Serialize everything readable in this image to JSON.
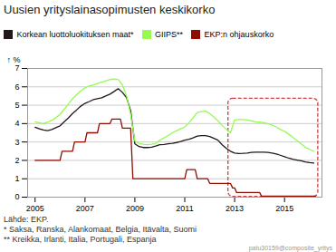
{
  "chart_data": {
    "type": "line",
    "title": "Uusien yrityslainasopimusten keskikorko",
    "y_label": "%",
    "xlim": [
      2004.7,
      2016.5
    ],
    "xticks": [
      2005,
      2007,
      2009,
      2011,
      2013,
      2015
    ],
    "ylim": [
      0,
      7
    ],
    "yticks": [
      0,
      1,
      2,
      3,
      4,
      5,
      6,
      7
    ],
    "grid": true,
    "legend": "top",
    "series": [
      {
        "name": "Korkean luottoluokituksen maat*",
        "x": [
          2005.0,
          2005.17,
          2005.33,
          2005.5,
          2005.67,
          2005.83,
          2006.0,
          2006.17,
          2006.33,
          2006.5,
          2006.67,
          2006.83,
          2007.0,
          2007.17,
          2007.33,
          2007.5,
          2007.67,
          2007.83,
          2008.0,
          2008.17,
          2008.33,
          2008.5,
          2008.67,
          2008.83,
          2009.0,
          2009.17,
          2009.33,
          2009.5,
          2009.67,
          2009.83,
          2010.0,
          2010.17,
          2010.33,
          2010.5,
          2010.67,
          2010.83,
          2011.0,
          2011.17,
          2011.33,
          2011.5,
          2011.67,
          2011.83,
          2012.0,
          2012.17,
          2012.33,
          2012.5,
          2012.67,
          2012.83,
          2013.0,
          2013.17,
          2013.33,
          2013.5,
          2013.67,
          2013.83,
          2014.0,
          2014.17,
          2014.33,
          2014.5,
          2014.67,
          2014.83,
          2015.0,
          2015.17,
          2015.33,
          2015.5,
          2015.67,
          2015.83,
          2016.0,
          2016.17
        ],
        "values": [
          3.8,
          3.72,
          3.65,
          3.62,
          3.68,
          3.78,
          3.88,
          4.1,
          4.3,
          4.55,
          4.75,
          4.95,
          5.1,
          5.2,
          5.3,
          5.35,
          5.4,
          5.5,
          5.6,
          5.75,
          5.9,
          5.7,
          5.4,
          4.7,
          2.9,
          2.75,
          2.7,
          2.7,
          2.72,
          2.78,
          2.85,
          2.87,
          2.9,
          2.93,
          2.97,
          3.02,
          3.1,
          3.15,
          3.22,
          3.32,
          3.35,
          3.35,
          3.3,
          3.2,
          3.1,
          2.85,
          2.65,
          2.5,
          2.4,
          2.37,
          2.38,
          2.4,
          2.43,
          2.45,
          2.45,
          2.45,
          2.43,
          2.4,
          2.35,
          2.28,
          2.2,
          2.12,
          2.06,
          2.02,
          1.98,
          1.92,
          1.88,
          1.85
        ]
      },
      {
        "name": "GIIPS**",
        "x": [
          2005.0,
          2005.17,
          2005.33,
          2005.5,
          2005.67,
          2005.83,
          2006.0,
          2006.17,
          2006.33,
          2006.5,
          2006.67,
          2006.83,
          2007.0,
          2007.17,
          2007.33,
          2007.5,
          2007.67,
          2007.83,
          2008.0,
          2008.17,
          2008.33,
          2008.5,
          2008.67,
          2008.83,
          2009.0,
          2009.17,
          2009.33,
          2009.5,
          2009.67,
          2009.83,
          2010.0,
          2010.17,
          2010.33,
          2010.5,
          2010.67,
          2010.83,
          2011.0,
          2011.17,
          2011.33,
          2011.5,
          2011.67,
          2011.83,
          2012.0,
          2012.17,
          2012.33,
          2012.5,
          2012.67,
          2012.83,
          2013.0,
          2013.17,
          2013.33,
          2013.5,
          2013.67,
          2013.83,
          2014.0,
          2014.17,
          2014.33,
          2014.5,
          2014.67,
          2014.83,
          2015.0,
          2015.17,
          2015.33,
          2015.5,
          2015.67,
          2015.83,
          2016.0,
          2016.17
        ],
        "values": [
          4.1,
          4.05,
          4.0,
          4.08,
          4.18,
          4.32,
          4.5,
          4.78,
          5.05,
          5.35,
          5.58,
          5.78,
          5.95,
          6.05,
          6.1,
          6.18,
          6.25,
          6.32,
          6.4,
          6.42,
          6.4,
          6.1,
          5.5,
          4.5,
          3.05,
          2.92,
          2.88,
          2.85,
          2.88,
          2.92,
          3.1,
          3.22,
          3.35,
          3.5,
          3.62,
          3.72,
          3.82,
          4.05,
          4.3,
          4.6,
          4.65,
          4.68,
          4.55,
          4.35,
          4.15,
          3.9,
          3.68,
          3.5,
          4.2,
          4.22,
          4.22,
          4.2,
          4.15,
          4.1,
          4.08,
          4.05,
          4.0,
          3.92,
          3.82,
          3.68,
          3.58,
          3.42,
          3.25,
          3.08,
          2.9,
          2.72,
          2.6,
          2.5
        ]
      },
      {
        "name": "EKP:n ohjauskorko",
        "x": [
          2005.0,
          2006.0,
          2006.08,
          2006.5,
          2006.58,
          2007.0,
          2007.08,
          2007.5,
          2007.58,
          2008.0,
          2008.08,
          2008.42,
          2008.5,
          2008.83,
          2008.92,
          2009.0,
          2009.08,
          2011.0,
          2011.08,
          2011.42,
          2011.5,
          2011.92,
          2012.0,
          2012.08,
          2012.83,
          2012.92,
          2013.0,
          2013.08,
          2014.0,
          2014.08,
          2016.25
        ],
        "values": [
          2.0,
          2.0,
          2.5,
          2.5,
          3.0,
          3.0,
          3.5,
          3.5,
          4.0,
          4.0,
          4.25,
          4.25,
          3.75,
          3.75,
          1.0,
          1.0,
          1.0,
          1.0,
          1.5,
          1.5,
          1.0,
          1.0,
          0.75,
          0.75,
          0.75,
          0.5,
          0.5,
          0.25,
          0.25,
          0.05,
          0.05
        ]
      }
    ],
    "annotations": [
      {
        "type": "box",
        "x": [
          2012.75,
          2016.35
        ],
        "y": [
          0.02,
          5.35
        ],
        "color": "#d04040",
        "line_style": "dashed"
      }
    ],
    "footnotes": [
      "Lähde: EKP.",
      "* Saksa, Ranska, Alankomaat, Belgia, Itävalta, Suomi",
      "** Kreikka, Irlanti, Italia, Portugali, Espanja"
    ],
    "watermark": "patu30159@composite_yritys"
  }
}
